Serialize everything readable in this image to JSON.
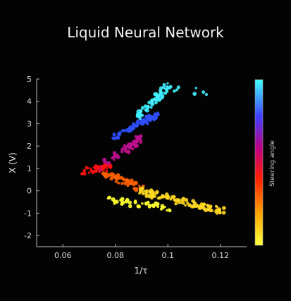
{
  "chart_data": {
    "type": "scatter",
    "title": "Liquid Neural Network",
    "xlabel": "1/τ",
    "ylabel": "X (V)",
    "xlim": [
      0.05,
      0.13
    ],
    "ylim": [
      -2.5,
      5
    ],
    "xticks": [
      0.06,
      0.08,
      0.1,
      0.12
    ],
    "xtick_labels": [
      "0.06",
      "0.08",
      "0.1",
      "0.12"
    ],
    "yticks": [
      -2,
      -1,
      0,
      1,
      2,
      3,
      4,
      5
    ],
    "ytick_labels": [
      "-2",
      "-1",
      "0",
      "1",
      "2",
      "3",
      "4",
      "5"
    ],
    "colorbar": {
      "label": "Steering angle",
      "colors": [
        "#ffff40",
        "#ffa000",
        "#ff2000",
        "#c00080",
        "#4040ff",
        "#40ffff"
      ]
    },
    "grid": false,
    "legend": "none",
    "clusters": [
      {
        "x_start": 0.073,
        "x_end": 0.09,
        "y_start": 0.95,
        "y_end": 2.4,
        "color": "#c01090",
        "count": 60
      },
      {
        "x_start": 0.08,
        "x_end": 0.096,
        "y_start": 2.4,
        "y_end": 3.4,
        "color": "#3050ff",
        "count": 70
      },
      {
        "x_start": 0.088,
        "x_end": 0.101,
        "y_start": 3.3,
        "y_end": 4.7,
        "color": "#40f0ff",
        "count": 70
      },
      {
        "x_start": 0.101,
        "x_end": 0.115,
        "y_start": 4.6,
        "y_end": 4.4,
        "color": "#40f0ff",
        "count": 8
      },
      {
        "x_start": 0.068,
        "x_end": 0.078,
        "y_start": 0.9,
        "y_end": 1.05,
        "color": "#ff1010",
        "count": 35
      },
      {
        "x_start": 0.076,
        "x_end": 0.09,
        "y_start": 0.8,
        "y_end": 0.1,
        "color": "#ff6000",
        "count": 45
      },
      {
        "x_start": 0.088,
        "x_end": 0.121,
        "y_start": 0.0,
        "y_end": -0.9,
        "color": "#ffd820",
        "count": 110
      },
      {
        "x_start": 0.076,
        "x_end": 0.1,
        "y_start": -0.4,
        "y_end": -0.75,
        "color": "#ffff30",
        "count": 45
      }
    ]
  }
}
